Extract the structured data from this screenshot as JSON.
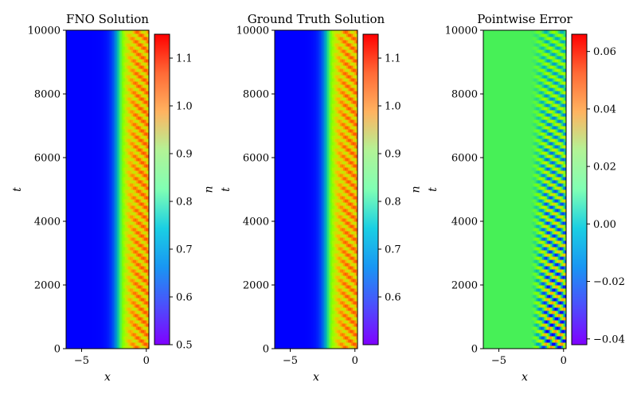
{
  "chart_data": [
    {
      "type": "heatmap",
      "title": "FNO Solution",
      "xlabel": "x",
      "ylabel": "t",
      "xlim": [
        -6.2,
        0.2
      ],
      "ylim": [
        0,
        10000
      ],
      "xticks": [
        -5,
        0
      ],
      "xtick_labels": [
        "−5",
        "0"
      ],
      "yticks": [
        0,
        2000,
        4000,
        6000,
        8000,
        10000
      ],
      "ytick_labels": [
        "0",
        "2000",
        "4000",
        "6000",
        "8000",
        "10000"
      ],
      "colormap": "rainbow",
      "colorbar": {
        "label": "u",
        "min": 0.5,
        "max": 1.15,
        "ticks": [
          0.5,
          0.6,
          0.7,
          0.8,
          0.9,
          1.0,
          1.1
        ],
        "tick_labels": [
          "0.5",
          "0.6",
          "0.7",
          "0.8",
          "0.9",
          "1.0",
          "1.1"
        ]
      },
      "field": {
        "base": 0.5,
        "front_x": -2.0,
        "front_width": 0.9,
        "amp": 0.5,
        "ripple": 0.08
      }
    },
    {
      "type": "heatmap",
      "title": "Ground Truth Solution",
      "xlabel": "x",
      "ylabel": "t",
      "xlim": [
        -6.2,
        0.2
      ],
      "ylim": [
        0,
        10000
      ],
      "xticks": [
        -5,
        0
      ],
      "xtick_labels": [
        "−5",
        "0"
      ],
      "yticks": [
        0,
        2000,
        4000,
        6000,
        8000,
        10000
      ],
      "ytick_labels": [
        "0",
        "2000",
        "4000",
        "6000",
        "8000",
        "10000"
      ],
      "colormap": "rainbow",
      "colorbar": {
        "label": "u",
        "min": 0.5,
        "max": 1.15,
        "ticks": [
          0.6,
          0.7,
          0.8,
          0.9,
          1.0,
          1.1
        ],
        "tick_labels": [
          "0.6",
          "0.7",
          "0.8",
          "0.9",
          "1.0",
          "1.1"
        ]
      },
      "field": {
        "base": 0.5,
        "front_x": -2.0,
        "front_width": 0.9,
        "amp": 0.5,
        "ripple": 0.08
      }
    },
    {
      "type": "heatmap",
      "title": "Pointwise Error",
      "xlabel": "x",
      "ylabel": "t",
      "xlim": [
        -6.2,
        0.2
      ],
      "ylim": [
        0,
        10000
      ],
      "xticks": [
        -5,
        0
      ],
      "xtick_labels": [
        "−5",
        "0"
      ],
      "yticks": [
        0,
        2000,
        4000,
        6000,
        8000,
        10000
      ],
      "ytick_labels": [
        "0",
        "2000",
        "4000",
        "6000",
        "8000",
        "10000"
      ],
      "colormap": "rainbow",
      "colorbar": {
        "label": "",
        "min": -0.042,
        "max": 0.066,
        "ticks": [
          -0.04,
          -0.02,
          0.0,
          0.02,
          0.04,
          0.06
        ],
        "tick_labels": [
          "−0.04",
          "−0.02",
          "0.00",
          "0.02",
          "0.04",
          "0.06"
        ]
      },
      "field": {
        "base": 0.0,
        "front_x": -2.0,
        "amp": 0.045
      }
    }
  ]
}
